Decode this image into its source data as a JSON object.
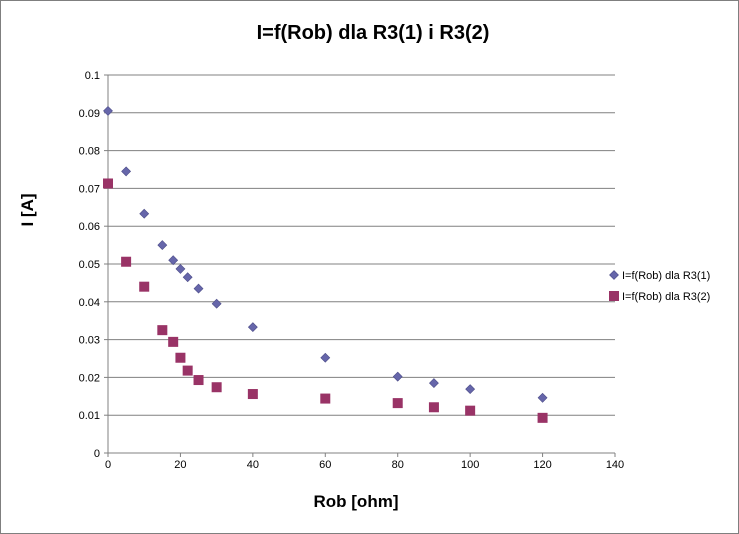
{
  "chart_data": {
    "type": "scatter",
    "title": "I=f(Rob) dla R3(1) i R3(2)",
    "xlabel": "Rob [ohm]",
    "ylabel": "I [A]",
    "xlim": [
      0,
      140
    ],
    "ylim": [
      0,
      0.1
    ],
    "xticks": [
      0,
      20,
      40,
      60,
      80,
      100,
      120,
      140
    ],
    "xtick_labels": [
      "0",
      "20",
      "40",
      "60",
      "80",
      "100",
      "120",
      "140"
    ],
    "yticks": [
      0,
      0.01,
      0.02,
      0.03,
      0.04,
      0.05,
      0.06,
      0.07,
      0.08,
      0.09,
      0.1
    ],
    "ytick_labels": [
      "0",
      "0.01",
      "0.02",
      "0.03",
      "0.04",
      "0.05",
      "0.06",
      "0.07",
      "0.08",
      "0.09",
      "0.1"
    ],
    "grid": "horizontal",
    "legend_position": "right",
    "series": [
      {
        "name": "I=f(Rob) dla R3(1)",
        "marker": "diamond",
        "color": "#6666aa",
        "points": [
          [
            0,
            0.0905
          ],
          [
            5,
            0.0745
          ],
          [
            10,
            0.0633
          ],
          [
            15,
            0.055
          ],
          [
            18,
            0.051
          ],
          [
            20,
            0.0487
          ],
          [
            22,
            0.0465
          ],
          [
            25,
            0.0435
          ],
          [
            30,
            0.0395
          ],
          [
            40,
            0.0333
          ],
          [
            60,
            0.0252
          ],
          [
            80,
            0.0202
          ],
          [
            90,
            0.0185
          ],
          [
            100,
            0.0169
          ],
          [
            120,
            0.0146
          ]
        ]
      },
      {
        "name": "I=f(Rob) dla R3(2)",
        "marker": "square",
        "color": "#993366",
        "points": [
          [
            0,
            0.0713
          ],
          [
            5,
            0.0506
          ],
          [
            10,
            0.044
          ],
          [
            15,
            0.0325
          ],
          [
            18,
            0.0294
          ],
          [
            20,
            0.0252
          ],
          [
            22,
            0.0218
          ],
          [
            25,
            0.0193
          ],
          [
            30,
            0.0174
          ],
          [
            40,
            0.0156
          ],
          [
            60,
            0.0144
          ],
          [
            80,
            0.0132
          ],
          [
            90,
            0.0121
          ],
          [
            100,
            0.0112
          ],
          [
            120,
            0.0093
          ]
        ]
      }
    ]
  }
}
